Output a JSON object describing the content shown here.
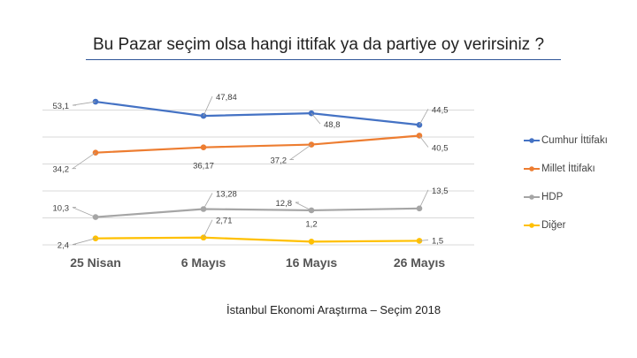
{
  "chart_data": {
    "type": "line",
    "title": "Bu Pazar seçim olsa hangi ittifak ya da partiye oy verirsiniz ?",
    "categories": [
      "25 Nisan",
      "6 Mayıs",
      "16 Mayıs",
      "26 Mayıs"
    ],
    "series": [
      {
        "name": "Cumhur İttifakı",
        "color": "#4472c4",
        "values": [
          53.1,
          47.84,
          48.8,
          44.5
        ],
        "labels": [
          "53,1",
          "47,84",
          "48,8",
          "44,5"
        ]
      },
      {
        "name": "Millet İttifakı",
        "color": "#ed7d31",
        "values": [
          34.2,
          36.17,
          37.2,
          40.5
        ],
        "labels": [
          "34,2",
          "36,17",
          "37,2",
          "40,5"
        ]
      },
      {
        "name": "HDP",
        "color": "#a5a5a5",
        "values": [
          10.3,
          13.28,
          12.8,
          13.5
        ],
        "labels": [
          "10,3",
          "13,28",
          "12,8",
          "13,5"
        ]
      },
      {
        "name": "Diğer",
        "color": "#ffc000",
        "values": [
          2.4,
          2.71,
          1.2,
          1.5
        ],
        "labels": [
          "2,4",
          "2,71",
          "1,2",
          "1,5"
        ]
      }
    ],
    "ylim": [
      0,
      60
    ],
    "grid": true,
    "legend": "right",
    "xlabel": "",
    "ylabel": ""
  },
  "footer": "İstanbul Ekonomi Araştırma – Seçim 2018"
}
